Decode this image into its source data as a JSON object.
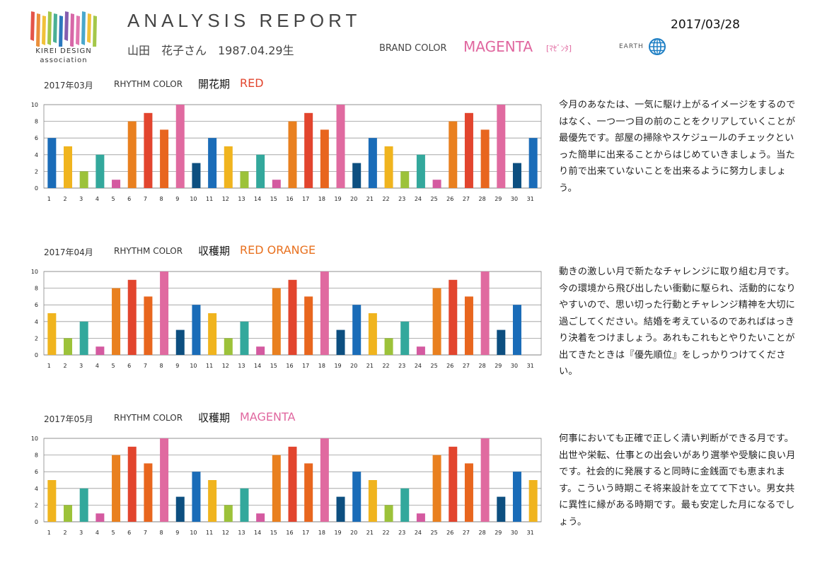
{
  "header": {
    "logo": {
      "line1": "KIREI DESIGN",
      "line2": "association",
      "stripe_colors": [
        "#e2453a",
        "#e8862a",
        "#f0bc28",
        "#9cc23a",
        "#3aa88c",
        "#1a6cb8",
        "#7b4fa8",
        "#d45aa0",
        "#e06aa8",
        "#3aa0c8",
        "#f0bc28",
        "#9cc23a"
      ]
    },
    "title": "ANALYSIS REPORT",
    "date": "2017/03/28",
    "person": "山田　花子さん　1987.04.29生",
    "brand_color_label": "BRAND COLOR",
    "brand_color_value": "MAGENTA",
    "brand_color_kana": "[ﾏｾﾞﾝﾀ]",
    "earth_label": "EARTH",
    "earth_icon": "globe-icon"
  },
  "palette": {
    "1": "#f0b41e",
    "2": "#9cc23a",
    "3": "#33a89c",
    "4": "#d45aa0",
    "5": "#e8861e",
    "6": "#1a6cb8",
    "7": "#e9801f",
    "8": "#e2452e",
    "9": "#e06aa0",
    "10": "#0d4f80"
  },
  "sections": [
    {
      "month": "2017年03月",
      "rhythm_label": "RHYTHM COLOR",
      "period": "開花期",
      "color_name": "RED",
      "color_hex": "#e2452e",
      "text": "今月のあなたは、一気に駆け上がるイメージをするのではなく、一つ一つ目の前のことをクリアしていくことが最優先です。部屋の掃除やスケジュールのチェックといった簡単に出来ることからはじめていきましょう。当たり前で出来ていないことを出来るように努力しましょう。",
      "chart_data": {
        "type": "bar",
        "categories": [
          "1",
          "2",
          "3",
          "4",
          "5",
          "6",
          "7",
          "8",
          "9",
          "10",
          "11",
          "12",
          "13",
          "14",
          "15",
          "16",
          "17",
          "18",
          "19",
          "20",
          "21",
          "22",
          "23",
          "24",
          "25",
          "26",
          "27",
          "28",
          "29",
          "30",
          "31"
        ],
        "values": [
          6,
          5,
          2,
          4,
          1,
          8,
          9,
          7,
          10,
          3,
          6,
          5,
          2,
          4,
          1,
          8,
          9,
          7,
          10,
          3,
          6,
          5,
          2,
          4,
          1,
          8,
          9,
          7,
          10,
          3,
          6
        ],
        "colors": [
          "#1a6cb8",
          "#f0b41e",
          "#9cc23a",
          "#33a89c",
          "#d45aa0",
          "#e9801f",
          "#e2452e",
          "#e8661e",
          "#e06aa0",
          "#0d4f80",
          "#1a6cb8",
          "#f0b41e",
          "#9cc23a",
          "#33a89c",
          "#d45aa0",
          "#e9801f",
          "#e2452e",
          "#e8661e",
          "#e06aa0",
          "#0d4f80",
          "#1a6cb8",
          "#f0b41e",
          "#9cc23a",
          "#33a89c",
          "#d45aa0",
          "#e9801f",
          "#e2452e",
          "#e8661e",
          "#e06aa0",
          "#0d4f80",
          "#1a6cb8"
        ],
        "yticks": [
          0,
          2,
          4,
          6,
          8,
          10
        ],
        "ylim": [
          0,
          10
        ],
        "grid": true
      }
    },
    {
      "month": "2017年04月",
      "rhythm_label": "RHYTHM COLOR",
      "period": "収穫期",
      "color_name": "RED ORANGE",
      "color_hex": "#e8701e",
      "text": "動きの激しい月で新たなチャレンジに取り組む月です。今の環境から飛び出したい衝動に駆られ、活動的になりやすいので、思い切った行動とチャレンジ精神を大切に過ごしてください。結婚を考えているのであればはっきり決着をつけましょう。あれもこれもとやりたいことが出てきたときは『優先順位』をしっかりつけてください。",
      "chart_data": {
        "type": "bar",
        "categories": [
          "1",
          "2",
          "3",
          "4",
          "5",
          "6",
          "7",
          "8",
          "9",
          "10",
          "11",
          "12",
          "13",
          "14",
          "15",
          "16",
          "17",
          "18",
          "19",
          "20",
          "21",
          "22",
          "23",
          "24",
          "25",
          "26",
          "27",
          "28",
          "29",
          "30",
          "31"
        ],
        "values": [
          5,
          2,
          4,
          1,
          8,
          9,
          7,
          10,
          3,
          6,
          5,
          2,
          4,
          1,
          8,
          9,
          7,
          10,
          3,
          6,
          5,
          2,
          4,
          1,
          8,
          9,
          7,
          10,
          3,
          6,
          null
        ],
        "colors": [
          "#f0b41e",
          "#9cc23a",
          "#33a89c",
          "#d45aa0",
          "#e9801f",
          "#e2452e",
          "#e8661e",
          "#e06aa0",
          "#0d4f80",
          "#1a6cb8",
          "#f0b41e",
          "#9cc23a",
          "#33a89c",
          "#d45aa0",
          "#e9801f",
          "#e2452e",
          "#e8661e",
          "#e06aa0",
          "#0d4f80",
          "#1a6cb8",
          "#f0b41e",
          "#9cc23a",
          "#33a89c",
          "#d45aa0",
          "#e9801f",
          "#e2452e",
          "#e8661e",
          "#e06aa0",
          "#0d4f80",
          "#1a6cb8",
          "#ffffff"
        ],
        "yticks": [
          0,
          2,
          4,
          6,
          8,
          10
        ],
        "ylim": [
          0,
          10
        ],
        "grid": true
      }
    },
    {
      "month": "2017年05月",
      "rhythm_label": "RHYTHM COLOR",
      "period": "収穫期",
      "color_name": "MAGENTA",
      "color_hex": "#e0679f",
      "text": "何事においても正確で正しく清い判断ができる月です。出世や栄転、仕事との出会いがあり選挙や受験に良い月です。社会的に発展すると同時に金銭面でも恵まれます。こういう時期こそ将来設計を立てて下さい。男女共に異性に縁がある時期です。最も安定した月になるでしょう。",
      "chart_data": {
        "type": "bar",
        "categories": [
          "1",
          "2",
          "3",
          "4",
          "5",
          "6",
          "7",
          "8",
          "9",
          "10",
          "11",
          "12",
          "13",
          "14",
          "15",
          "16",
          "17",
          "18",
          "19",
          "20",
          "21",
          "22",
          "23",
          "24",
          "25",
          "26",
          "27",
          "28",
          "29",
          "30",
          "31"
        ],
        "values": [
          5,
          2,
          4,
          1,
          8,
          9,
          7,
          10,
          3,
          6,
          5,
          2,
          4,
          1,
          8,
          9,
          7,
          10,
          3,
          6,
          5,
          2,
          4,
          1,
          8,
          9,
          7,
          10,
          3,
          6,
          5
        ],
        "colors": [
          "#f0b41e",
          "#9cc23a",
          "#33a89c",
          "#d45aa0",
          "#e9801f",
          "#e2452e",
          "#e8661e",
          "#e06aa0",
          "#0d4f80",
          "#1a6cb8",
          "#f0b41e",
          "#9cc23a",
          "#33a89c",
          "#d45aa0",
          "#e9801f",
          "#e2452e",
          "#e8661e",
          "#e06aa0",
          "#0d4f80",
          "#1a6cb8",
          "#f0b41e",
          "#9cc23a",
          "#33a89c",
          "#d45aa0",
          "#e9801f",
          "#e2452e",
          "#e8661e",
          "#e06aa0",
          "#0d4f80",
          "#1a6cb8",
          "#f0b41e"
        ],
        "yticks": [
          0,
          2,
          4,
          6,
          8,
          10
        ],
        "ylim": [
          0,
          10
        ],
        "grid": true
      }
    }
  ]
}
